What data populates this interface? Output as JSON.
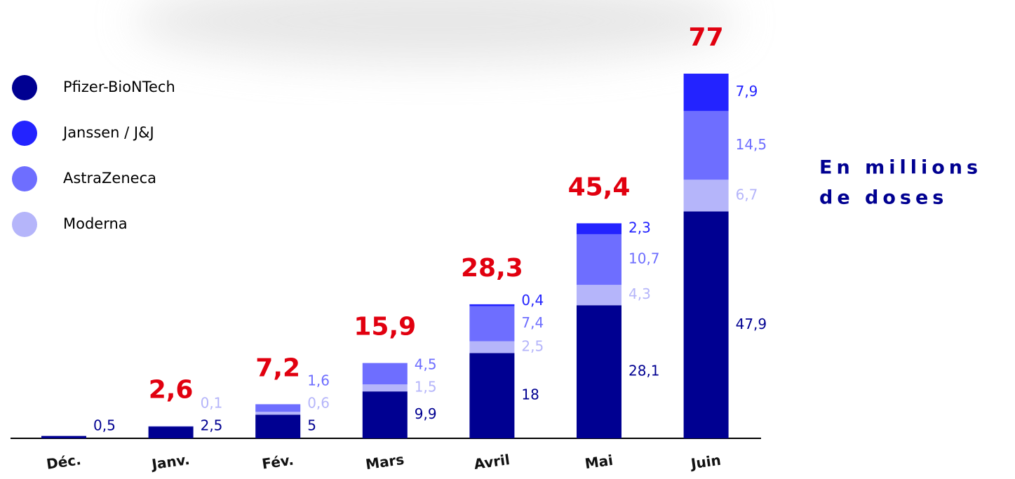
{
  "chart_data": {
    "type": "stacked_bar",
    "categories": [
      "Déc.",
      "Janv.",
      "Fév.",
      "Mars",
      "Avril",
      "Mai",
      "Juin"
    ],
    "series": [
      {
        "name": "Pfizer-BioNTech",
        "color": "#000091",
        "values": [
          0.5,
          2.5,
          5,
          9.9,
          18,
          28.1,
          47.9
        ],
        "value_labels": [
          "0,5",
          "2,5",
          "5",
          "9,9",
          "18",
          "28,1",
          "47,9"
        ]
      },
      {
        "name": "Janssen / J&J",
        "color": "#2323ff",
        "values": [
          null,
          null,
          null,
          null,
          0.4,
          2.3,
          7.9
        ],
        "value_labels": [
          null,
          null,
          null,
          null,
          "0,4",
          "2,3",
          "7,9"
        ]
      },
      {
        "name": "AstraZeneca",
        "color": "#6e6eff",
        "values": [
          null,
          null,
          1.6,
          4.5,
          7.4,
          10.7,
          14.5
        ],
        "value_labels": [
          null,
          null,
          "1,6",
          "4,5",
          "7,4",
          "10,7",
          "14,5"
        ]
      },
      {
        "name": "Moderna",
        "color": "#b5b5fa",
        "values": [
          null,
          0.1,
          0.6,
          1.5,
          2.5,
          4.3,
          6.7
        ],
        "value_labels": [
          null,
          "0,1",
          "0,6",
          "1,5",
          "2,5",
          "4,3",
          "6,7"
        ]
      }
    ],
    "totals": {
      "color": "#e1000f",
      "values": [
        null,
        2.6,
        7.2,
        15.9,
        28.3,
        45.4,
        77
      ],
      "value_labels": [
        null,
        "2,6",
        "7,2",
        "15,9",
        "28,3",
        "45,4",
        "77"
      ]
    },
    "annotation": [
      "En millions",
      "de doses"
    ]
  }
}
